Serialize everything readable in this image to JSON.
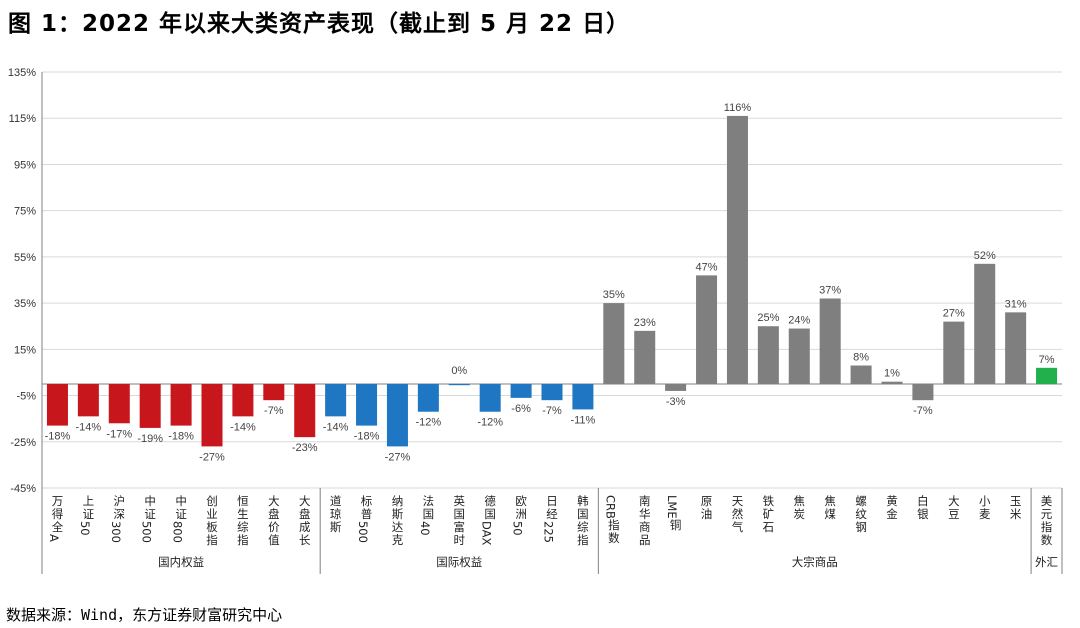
{
  "title": "图 1：2022 年以来大类资产表现（截止到 5 月 22 日）",
  "source": "数据来源：Wind，东方证券财富研究中心",
  "colors": {
    "domestic": "#C8161D",
    "international": "#1F77C4",
    "commodity": "#7F7F7F",
    "fx": "#21B04B",
    "gridline": "#D9D9D9",
    "axis": "#808080"
  },
  "chart_data": {
    "type": "bar",
    "ylim": [
      -45,
      135
    ],
    "yticks": [
      -45,
      -25,
      -5,
      15,
      35,
      55,
      75,
      95,
      115,
      135
    ],
    "yunit": "%",
    "grid": true,
    "groups": [
      {
        "name": "国内权益",
        "color_key": "domestic",
        "start": 0,
        "end": 8
      },
      {
        "name": "国际权益",
        "color_key": "international",
        "start": 9,
        "end": 17
      },
      {
        "name": "大宗商品",
        "color_key": "commodity",
        "start": 18,
        "end": 31
      },
      {
        "name": "外汇",
        "color_key": "fx",
        "start": 32,
        "end": 32
      }
    ],
    "categories": [
      "万得全A",
      "上证50",
      "沪深300",
      "中证500",
      "中证800",
      "创业板指",
      "恒生综指",
      "大盘价值",
      "大盘成长",
      "道琼斯",
      "标普500",
      "纳斯达克",
      "法国40",
      "英国富时",
      "德国DAX",
      "欧洲50",
      "日经225",
      "韩国综指",
      "CRB指数",
      "南华商品",
      "LME铜",
      "原油",
      "天然气",
      "铁矿石",
      "焦炭",
      "焦煤",
      "螺纹钢",
      "黄金",
      "白银",
      "大豆",
      "小麦",
      "玉米",
      "美元指数"
    ],
    "values": [
      -18,
      -14,
      -17,
      -19,
      -18,
      -27,
      -14,
      -7,
      -23,
      -14,
      -18,
      -27,
      -12,
      0,
      -12,
      -6,
      -7,
      -11,
      35,
      23,
      -3,
      47,
      116,
      25,
      24,
      37,
      8,
      1,
      -7,
      27,
      52,
      31,
      7
    ],
    "labels": [
      "-18%",
      "-14%",
      "-17%",
      "-19%",
      "-18%",
      "-27%",
      "-14%",
      "-7%",
      "-23%",
      "-14%",
      "-18%",
      "-27%",
      "-12%",
      "0%",
      "-12%",
      "-6%",
      "-7%",
      "-11%",
      "35%",
      "23%",
      "-3%",
      "47%",
      "116%",
      "25%",
      "24%",
      "37%",
      "8%",
      "1%",
      "-7%",
      "27%",
      "52%",
      "31%",
      "7%"
    ]
  }
}
